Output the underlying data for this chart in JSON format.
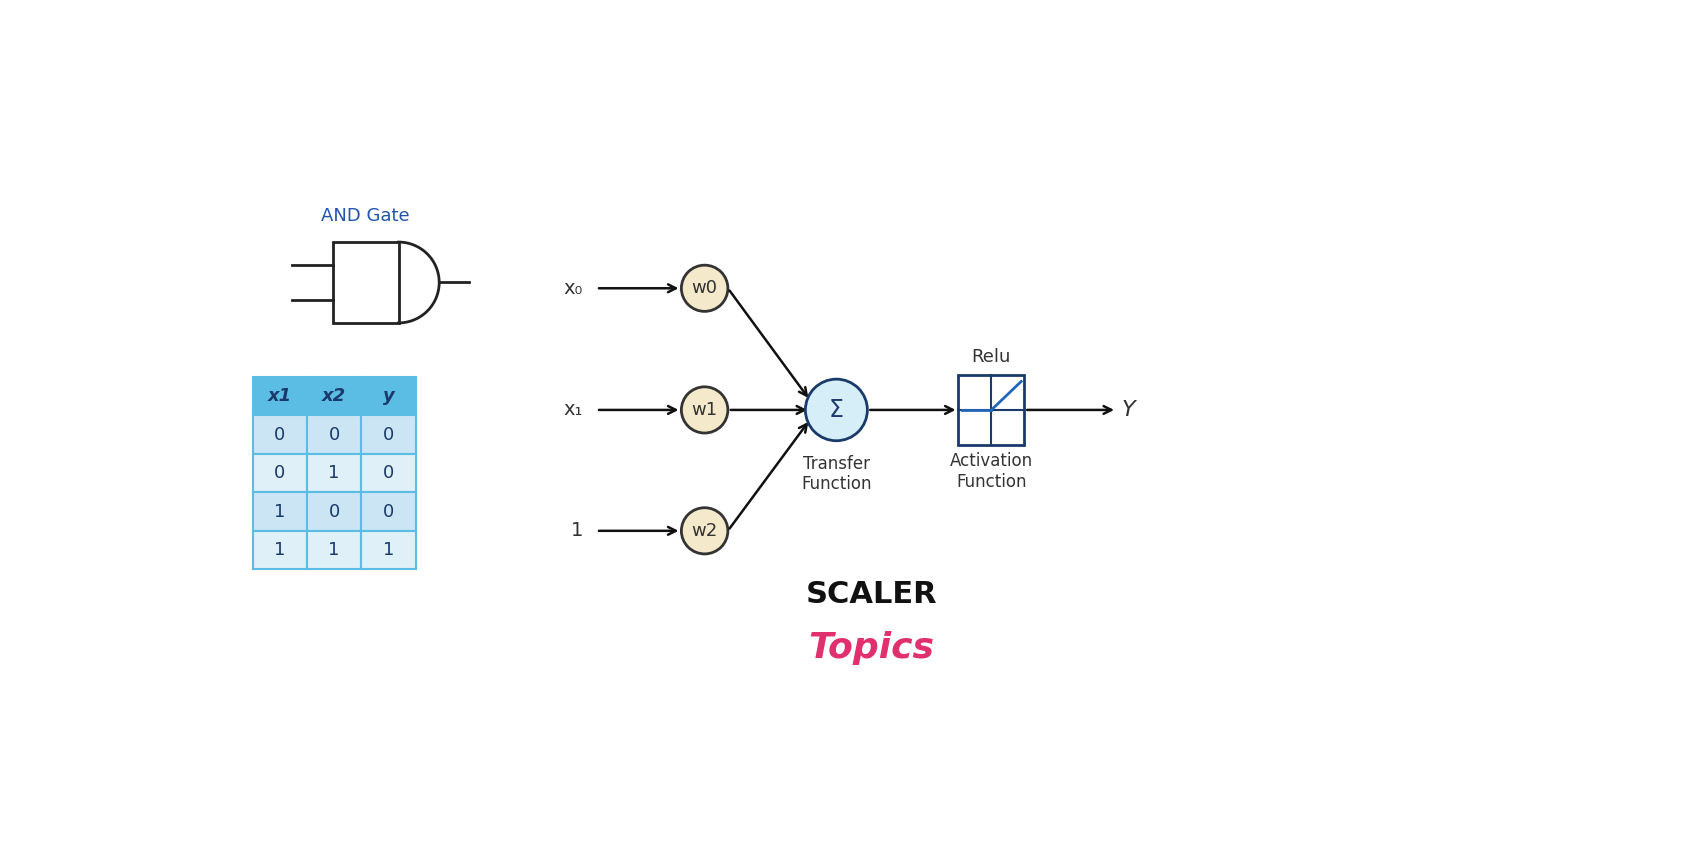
{
  "bg_color": "#ffffff",
  "title_color": "#2255aa",
  "table_header_color": "#5bbde4",
  "table_row_color1": "#cce5f5",
  "table_row_color2": "#dff0f8",
  "table_border_color": "#5bbde4",
  "table_text_color": "#1a3a6b",
  "gate_color": "#222222",
  "weight_circle_fill": "#f5e9cc",
  "weight_circle_edge": "#333333",
  "sum_circle_fill": "#d6eef8",
  "sum_circle_edge": "#1a3a6b",
  "arrow_color": "#111111",
  "relu_box_edge": "#1a3a6b",
  "relu_line_color": "#2266bb",
  "label_color": "#333333",
  "scaler_black": "#111111",
  "scaler_pink": "#e0306e",
  "and_gate_label": "AND Gate",
  "table_headers": [
    "x1",
    "x2",
    "y"
  ],
  "table_data": [
    [
      0,
      0,
      0
    ],
    [
      0,
      1,
      0
    ],
    [
      1,
      0,
      0
    ],
    [
      1,
      1,
      1
    ]
  ],
  "inputs": [
    "x₀",
    "x₁",
    "1"
  ],
  "weights": [
    "w0",
    "w1",
    "w2"
  ],
  "sum_label": "Σ",
  "transfer_label": "Transfer\nFunction",
  "relu_label": "Relu",
  "activation_label": "Activation\nFunction",
  "output_label": "Y"
}
